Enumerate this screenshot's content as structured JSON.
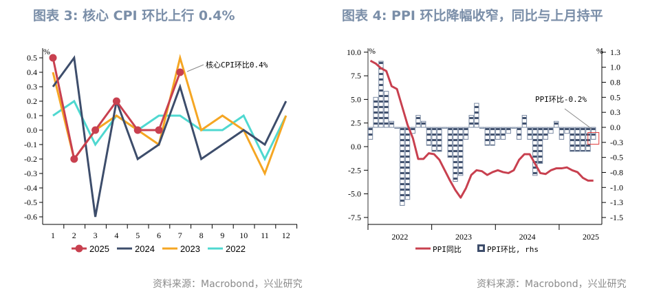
{
  "left": {
    "title": "图表 3:  核心 CPI 环比上行 0.4%",
    "source": "资料来源：Macrobond，兴业研究"
  },
  "right": {
    "title": "图表 4:  PPI 环比降幅收窄，同比与上月持平",
    "source": "资料来源：Macrobond，兴业研究"
  },
  "chart_data": [
    {
      "type": "line",
      "title": "图表 3: 核心 CPI 环比上行 0.4%",
      "xlabel": "",
      "ylabel": "%",
      "categories": [
        "1",
        "2",
        "3",
        "4",
        "5",
        "6",
        "7",
        "8",
        "9",
        "10",
        "11",
        "12"
      ],
      "ylim": [
        -0.6,
        0.5
      ],
      "yticks": [
        "0.5",
        "0.4",
        "0.3",
        "0.2",
        "0.1",
        "0.0",
        "-0.1",
        "-0.2",
        "-0.3",
        "-0.4",
        "-0.5",
        "-0.6"
      ],
      "legend_position": "bottom",
      "series": [
        {
          "name": "2025",
          "color": "#c8404f",
          "markers": true,
          "values": [
            0.5,
            -0.2,
            0.0,
            0.2,
            0.0,
            0.0,
            0.4
          ]
        },
        {
          "name": "2024",
          "color": "#3d4d6b",
          "markers": false,
          "values": [
            0.3,
            0.5,
            -0.6,
            0.2,
            -0.2,
            -0.1,
            0.3,
            -0.2,
            -0.1,
            0.0,
            -0.1,
            0.2
          ]
        },
        {
          "name": "2023",
          "color": "#f5a623",
          "markers": false,
          "values": [
            0.4,
            -0.2,
            0.0,
            0.1,
            0.0,
            -0.1,
            0.5,
            0.0,
            0.1,
            0.0,
            -0.3,
            0.1
          ]
        },
        {
          "name": "2022",
          "color": "#4fd8d0",
          "markers": false,
          "values": [
            0.1,
            0.2,
            -0.1,
            0.1,
            0.0,
            0.1,
            0.1,
            0.0,
            0.0,
            0.1,
            -0.2,
            0.1
          ]
        }
      ],
      "annotation": "核心CPI环比0.4%"
    },
    {
      "type": "bar+line",
      "title": "图表 4: PPI 环比降幅收窄，同比与上月持平",
      "xlabel": "",
      "ylabel_left": "%",
      "ylabel_right": "%",
      "x_tick_labels": [
        "2022",
        "2023",
        "2024",
        "2025"
      ],
      "x_start": "2022-01",
      "ylim_left": [
        -8.5,
        10.0
      ],
      "yticks_left": [
        "10.0",
        "7.5",
        "5.0",
        "2.5",
        "0.0",
        "-2.5",
        "-5.0",
        "-7.5"
      ],
      "ylim_right": [
        -1.55,
        1.3
      ],
      "yticks_right": [
        "1.3",
        "1.0",
        "0.8",
        "0.5",
        "0.3",
        "0.0",
        "-0.3",
        "-0.5",
        "-0.8",
        "-1.0",
        "-1.3",
        "-1.5"
      ],
      "legend_position": "bottom",
      "series": [
        {
          "name": "PPI同比",
          "type": "line",
          "axis": "left",
          "color": "#c8404f",
          "values": [
            9.1,
            8.8,
            8.3,
            8.0,
            6.4,
            6.1,
            4.2,
            2.3,
            0.9,
            -1.3,
            -1.3,
            -0.7,
            -0.8,
            -1.4,
            -2.5,
            -3.6,
            -4.6,
            -5.4,
            -4.4,
            -3.0,
            -2.5,
            -2.6,
            -3.0,
            -2.7,
            -2.5,
            -2.7,
            -2.8,
            -2.5,
            -1.4,
            -0.8,
            -0.8,
            -1.8,
            -2.8,
            -2.9,
            -2.5,
            -2.3,
            -2.3,
            -2.2,
            -2.5,
            -2.7,
            -3.3,
            -3.6,
            -3.6
          ]
        },
        {
          "name": "PPI环比, rhs",
          "type": "bar",
          "axis": "right",
          "color": "#3d4d6b",
          "values": [
            -0.2,
            0.5,
            1.1,
            0.6,
            0.1,
            0.0,
            -1.3,
            -1.2,
            -0.1,
            0.2,
            0.1,
            -0.3,
            -0.4,
            -0.4,
            0.0,
            -0.5,
            -0.9,
            -0.8,
            -0.2,
            0.2,
            0.4,
            0.0,
            -0.3,
            -0.3,
            -0.2,
            -0.2,
            -0.1,
            0.0,
            -0.2,
            0.2,
            -0.2,
            -0.8,
            -0.6,
            -0.2,
            -0.1,
            0.1,
            -0.2,
            -0.1,
            -0.4,
            -0.4,
            -0.4,
            -0.4,
            -0.2
          ]
        }
      ],
      "annotation": "PPI环比-0.2%"
    }
  ]
}
